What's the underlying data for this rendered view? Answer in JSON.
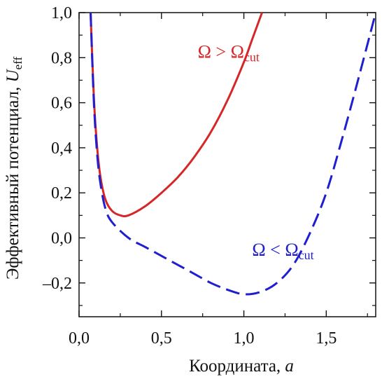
{
  "chart_data": {
    "type": "line",
    "xlabel": "Координата,",
    "xlabel_var": "a",
    "ylabel": "Эффективный потенциал,",
    "ylabel_var": "U",
    "ylabel_sub": "eff",
    "xlim": [
      0.0,
      1.8
    ],
    "ylim": [
      -0.35,
      1.0
    ],
    "x_ticks": [
      0.0,
      0.5,
      1.0,
      1.5
    ],
    "x_tick_labels": [
      "0,0",
      "0,5",
      "1,0",
      "1,5"
    ],
    "y_ticks": [
      -0.2,
      0.0,
      0.2,
      0.4,
      0.6,
      0.8,
      1.0
    ],
    "y_tick_labels": [
      "–0,2",
      "0,0",
      "0,2",
      "0,4",
      "0,6",
      "0,8",
      "1,0"
    ],
    "grid": false,
    "series": [
      {
        "name": "Ω > Ωcut",
        "color": "#d62728",
        "style": "solid",
        "x": [
          0.07,
          0.09,
          0.11,
          0.13,
          0.16,
          0.2,
          0.25,
          0.3,
          0.4,
          0.5,
          0.6,
          0.7,
          0.8,
          0.9,
          1.0,
          1.05,
          1.11
        ],
        "y": [
          1.0,
          0.62,
          0.4,
          0.27,
          0.17,
          0.12,
          0.1,
          0.1,
          0.14,
          0.2,
          0.27,
          0.36,
          0.47,
          0.61,
          0.78,
          0.88,
          1.0
        ]
      },
      {
        "name": "Ω < Ωcut",
        "color": "#1f1fcf",
        "style": "dashed",
        "x": [
          0.07,
          0.09,
          0.11,
          0.13,
          0.16,
          0.2,
          0.3,
          0.4,
          0.5,
          0.6,
          0.7,
          0.8,
          0.9,
          1.0,
          1.1,
          1.2,
          1.3,
          1.4,
          1.5,
          1.6,
          1.7,
          1.8
        ],
        "y": [
          1.0,
          0.6,
          0.37,
          0.24,
          0.13,
          0.07,
          0.0,
          -0.04,
          -0.08,
          -0.12,
          -0.16,
          -0.2,
          -0.23,
          -0.25,
          -0.24,
          -0.2,
          -0.12,
          0.02,
          0.2,
          0.45,
          0.72,
          1.0
        ]
      }
    ],
    "annotations": [
      {
        "text": "Ω > Ω",
        "sub": "cut",
        "color": "#d62728",
        "x": 0.72,
        "y": 0.8
      },
      {
        "text": "Ω < Ω",
        "sub": "cut",
        "color": "#1f1fcf",
        "x": 1.05,
        "y": -0.08
      }
    ]
  }
}
